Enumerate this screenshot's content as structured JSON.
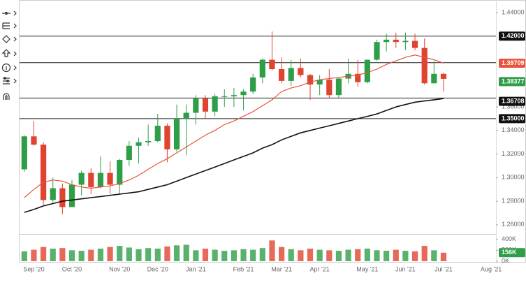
{
  "chart_data": {
    "type": "candlestick",
    "categories": [
      null,
      "Sep '20",
      null,
      null,
      null,
      "Oct '20",
      null,
      null,
      null,
      null,
      "Nov '20",
      null,
      null,
      null,
      "Dec '20",
      null,
      null,
      null,
      "Jan '21",
      null,
      null,
      null,
      null,
      "Feb '21",
      null,
      null,
      null,
      "Mar '21",
      null,
      null,
      null,
      "Apr '21",
      null,
      null,
      null,
      null,
      "May '21",
      null,
      null,
      null,
      "Jun '21",
      null,
      null,
      null,
      "Jul '21",
      null,
      null,
      null,
      null,
      "Aug '21"
    ],
    "open": [
      1.307,
      1.335,
      1.328,
      1.281,
      1.291,
      1.275,
      1.294,
      1.304,
      1.292,
      1.304,
      1.294,
      1.315,
      1.327,
      1.33,
      1.331,
      1.344,
      1.324,
      1.35,
      1.355,
      1.367,
      1.356,
      1.369,
      1.369,
      1.37,
      1.373,
      1.385,
      1.4,
      1.392,
      1.382,
      1.393,
      1.387,
      1.379,
      1.383,
      1.37,
      1.384,
      1.388,
      1.381,
      1.4,
      1.415,
      1.417,
      1.415,
      1.416,
      1.41,
      1.38,
      1.388,
      null,
      null,
      null,
      null,
      null
    ],
    "high": [
      1.336,
      1.348,
      1.33,
      1.3,
      1.295,
      1.298,
      1.306,
      1.308,
      1.318,
      1.314,
      1.316,
      1.331,
      1.334,
      1.345,
      1.354,
      1.346,
      1.362,
      1.362,
      1.37,
      1.37,
      1.371,
      1.375,
      1.376,
      1.375,
      1.388,
      1.401,
      1.424,
      1.402,
      1.4,
      1.401,
      1.388,
      1.387,
      1.392,
      1.385,
      1.401,
      1.4,
      1.4,
      1.417,
      1.422,
      1.423,
      1.423,
      1.422,
      1.418,
      1.399,
      1.389,
      null,
      null,
      null,
      null,
      null
    ],
    "low": [
      1.305,
      1.327,
      1.277,
      1.279,
      1.269,
      1.275,
      1.285,
      1.286,
      1.291,
      1.286,
      1.286,
      1.31,
      1.312,
      1.327,
      1.33,
      1.313,
      1.322,
      1.319,
      1.345,
      1.35,
      1.352,
      1.36,
      1.36,
      1.357,
      1.371,
      1.38,
      1.391,
      1.38,
      1.378,
      1.385,
      1.366,
      1.37,
      1.367,
      1.367,
      1.38,
      1.377,
      1.38,
      1.399,
      1.407,
      1.41,
      1.408,
      1.408,
      1.379,
      1.38,
      1.373,
      null,
      null,
      null,
      null,
      null
    ],
    "close": [
      1.335,
      1.328,
      1.281,
      1.291,
      1.275,
      1.294,
      1.304,
      1.292,
      1.304,
      1.294,
      1.315,
      1.327,
      1.33,
      1.331,
      1.344,
      1.324,
      1.35,
      1.355,
      1.367,
      1.356,
      1.369,
      1.369,
      1.37,
      1.373,
      1.385,
      1.4,
      1.392,
      1.382,
      1.393,
      1.387,
      1.379,
      1.383,
      1.37,
      1.384,
      1.388,
      1.381,
      1.4,
      1.415,
      1.417,
      1.415,
      1.416,
      1.41,
      1.38,
      1.388,
      1.38377,
      null,
      null,
      null,
      null,
      null
    ],
    "up_color": "#2e9e48",
    "down_color": "#e0432f",
    "lines": [
      {
        "color": "#e8543c",
        "values": [
          1.283,
          1.29,
          1.296,
          1.298,
          1.297,
          1.294,
          1.292,
          1.291,
          1.292,
          1.293,
          1.295,
          1.298,
          1.302,
          1.307,
          1.312,
          1.316,
          1.321,
          1.326,
          1.331,
          1.336,
          1.34,
          1.345,
          1.348,
          1.352,
          1.356,
          1.361,
          1.366,
          1.373,
          1.376,
          1.378,
          1.381,
          1.383,
          1.384,
          1.385,
          1.386,
          1.387,
          1.389,
          1.392,
          1.396,
          1.399,
          1.402,
          1.404,
          1.402,
          1.4,
          1.39709,
          null,
          null,
          null,
          null,
          null
        ]
      },
      {
        "color": "#111111",
        "values": [
          1.2705,
          1.273,
          1.276,
          1.278,
          1.28,
          1.281,
          1.282,
          1.283,
          1.284,
          1.285,
          1.286,
          1.287,
          1.288,
          1.29,
          1.292,
          1.294,
          1.297,
          1.3,
          1.303,
          1.306,
          1.309,
          1.312,
          1.315,
          1.318,
          1.321,
          1.325,
          1.328,
          1.332,
          1.335,
          1.338,
          1.34,
          1.342,
          1.344,
          1.346,
          1.348,
          1.35,
          1.352,
          1.354,
          1.357,
          1.36,
          1.362,
          1.364,
          1.365,
          1.366,
          1.36708,
          null,
          null,
          null,
          null,
          null
        ]
      }
    ],
    "levels": [
      {
        "value": 1.42,
        "label": "1.42000"
      },
      {
        "value": 1.35,
        "label": "1.35000"
      }
    ],
    "hlines": [
      1.3975,
      1.3675
    ],
    "ylim": [
      1.254,
      1.4477
    ],
    "yticks": [
      {
        "value": 1.26,
        "label": "1.26000"
      },
      {
        "value": 1.28,
        "label": "1.28000"
      },
      {
        "value": 1.3,
        "label": "1.30000"
      },
      {
        "value": 1.32,
        "label": "1.32000"
      },
      {
        "value": 1.34,
        "label": "1.34000"
      },
      {
        "value": 1.36,
        "label": "1.36000"
      },
      {
        "value": 1.44,
        "label": "1.44000"
      }
    ],
    "volume": {
      "values": [
        180000,
        210000,
        260000,
        230000,
        240000,
        200000,
        190000,
        210000,
        230000,
        260000,
        280000,
        250000,
        220000,
        240000,
        230000,
        270000,
        290000,
        300000,
        200000,
        230000,
        210000,
        190000,
        200000,
        220000,
        210000,
        240000,
        380000,
        260000,
        220000,
        200000,
        230000,
        210000,
        200000,
        190000,
        210000,
        220000,
        230000,
        200000,
        190000,
        210000,
        190000,
        180000,
        280000,
        200000,
        156000,
        null,
        null,
        null,
        null,
        null
      ],
      "value_labels": [
        null,
        null,
        null,
        null,
        null,
        null,
        null,
        null,
        null,
        null,
        null,
        null,
        null,
        null,
        null,
        null,
        null,
        null,
        null,
        null,
        null,
        null,
        null,
        null,
        null,
        null,
        null,
        null,
        null,
        null,
        null,
        null,
        null,
        null,
        null,
        null,
        null,
        null,
        null,
        null,
        null,
        null,
        null,
        null,
        "156K",
        null,
        null,
        null,
        null,
        null
      ],
      "ylim": [
        0,
        460000
      ],
      "yticks": [
        {
          "value": 0,
          "label": "0K"
        },
        {
          "value": 200000,
          "label": "200K"
        },
        {
          "value": 400000,
          "label": "400K"
        }
      ]
    }
  }
}
